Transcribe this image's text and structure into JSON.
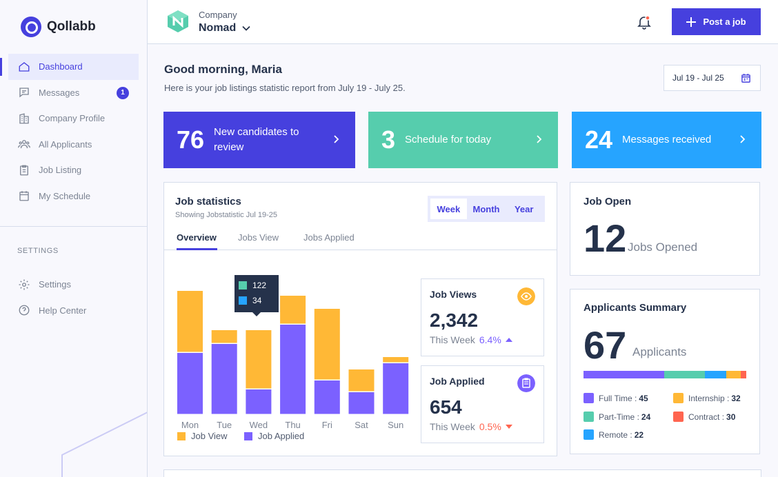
{
  "brand": {
    "name": "Qollabb"
  },
  "sidebar": {
    "items": [
      {
        "label": "Dashboard",
        "icon": "home-icon"
      },
      {
        "label": "Messages",
        "icon": "chat-icon",
        "badge": "1"
      },
      {
        "label": "Company Profile",
        "icon": "building-icon"
      },
      {
        "label": "All Applicants",
        "icon": "users-icon"
      },
      {
        "label": "Job Listing",
        "icon": "clipboard-icon"
      },
      {
        "label": "My Schedule",
        "icon": "calendar-icon"
      }
    ],
    "settings_heading": "SETTINGS",
    "settings_items": [
      {
        "label": "Settings",
        "icon": "gear-icon"
      },
      {
        "label": "Help Center",
        "icon": "help-icon"
      }
    ]
  },
  "topbar": {
    "company_label": "Company",
    "company_name": "Nomad",
    "post_job_label": "Post a job"
  },
  "header": {
    "greeting": "Good morning, Maria",
    "subtitle": "Here is your job listings statistic report from July 19 - July 25.",
    "date_range": "Jul 19 - Jul 25"
  },
  "stat_cards": [
    {
      "number": "76",
      "label": "New candidates to review",
      "color": "#4640DE"
    },
    {
      "number": "3",
      "label": "Schedule for today",
      "color": "#56CDAD"
    },
    {
      "number": "24",
      "label": "Messages received",
      "color": "#26A4FF"
    }
  ],
  "job_statistics": {
    "title": "Job statistics",
    "subtitle": "Showing Jobstatistic Jul 19-25",
    "periods": [
      "Week",
      "Month",
      "Year"
    ],
    "selected_period": "Week",
    "tabs": [
      "Overview",
      "Jobs View",
      "Jobs Applied"
    ],
    "tooltip": {
      "job_view": "122",
      "job_applied": "34"
    },
    "legend": {
      "job_view": "Job View",
      "job_applied": "Job Applied"
    }
  },
  "chart_data": {
    "type": "bar",
    "stacked": true,
    "categories": [
      "Mon",
      "Tue",
      "Wed",
      "Thu",
      "Fri",
      "Sat",
      "Sun"
    ],
    "series": [
      {
        "name": "Job Applied",
        "color": "#7B61FF",
        "values": [
          90,
          103,
          37,
          131,
          50,
          33,
          75
        ]
      },
      {
        "name": "Job View",
        "color": "#FFB836",
        "values": [
          90,
          20,
          86,
          42,
          104,
          33,
          9
        ]
      }
    ],
    "ylim": [
      0,
      190
    ],
    "grid": false,
    "legend": "bottom-left"
  },
  "job_views": {
    "title": "Job Views",
    "value": "2,342",
    "period_label": "This Week",
    "change": "6.4%",
    "direction": "up",
    "icon": "eye-icon",
    "icon_color": "#FFB836",
    "change_color": "#7B61FF"
  },
  "job_applied": {
    "title": "Job Applied",
    "value": "654",
    "period_label": "This Week",
    "change": "0.5%",
    "direction": "down",
    "icon": "clipboard-icon",
    "icon_color": "#7B61FF",
    "change_color": "#FF6550"
  },
  "job_open": {
    "title": "Job Open",
    "number": "12",
    "label": "Jobs Opened"
  },
  "applicants_summary": {
    "title": "Applicants Summary",
    "number": "67",
    "label": "Applicants",
    "categories": [
      {
        "name": "Full Time",
        "value": "45",
        "color": "#7B61FF",
        "share": 0.49
      },
      {
        "name": "Part-Time",
        "value": "24",
        "color": "#56CDAD",
        "share": 0.25
      },
      {
        "name": "Remote",
        "value": "22",
        "color": "#26A4FF",
        "share": 0.13
      },
      {
        "name": "Internship",
        "value": "32",
        "color": "#FFB836",
        "share": 0.09
      },
      {
        "name": "Contract",
        "value": "30",
        "color": "#FF6550",
        "share": 0.03
      }
    ]
  }
}
